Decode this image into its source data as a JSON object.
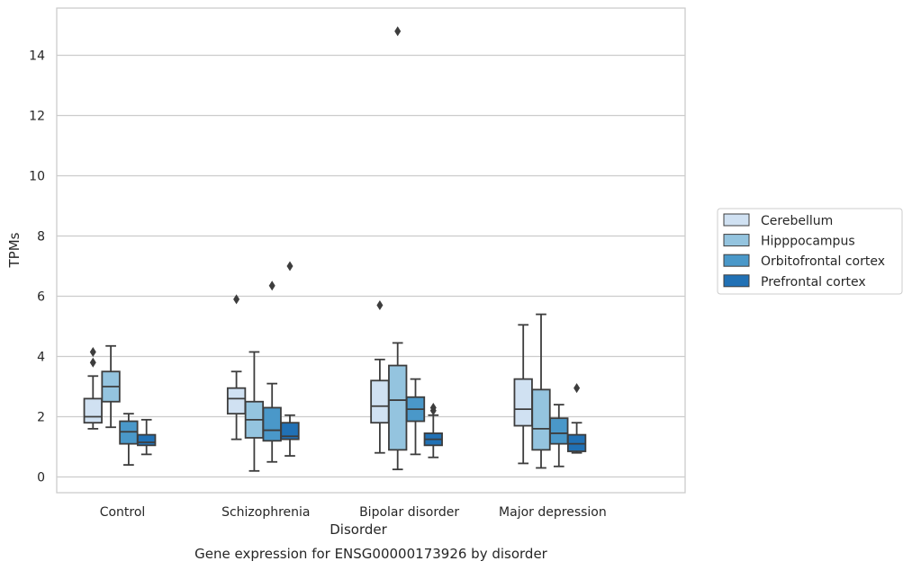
{
  "chart_data": {
    "type": "box",
    "title": "",
    "caption": "Gene expression for ENSG00000173926 by disorder",
    "xlabel": "Disorder",
    "ylabel": "TPMs",
    "ylim": [
      -0.5,
      15.6
    ],
    "yticks": [
      0,
      2,
      4,
      6,
      8,
      10,
      12,
      14
    ],
    "ytick_labels": [
      "0",
      "2",
      "4",
      "6",
      "8",
      "10",
      "12",
      "14"
    ],
    "grid": "horizontal",
    "legend_position": "right",
    "categories": [
      "Control",
      "Schizophrenia",
      "Bipolar disorder",
      "Major depression"
    ],
    "series": [
      {
        "name": "Cerebellum",
        "color": "#d0e1f2",
        "boxes": [
          {
            "whisker_low": 1.6,
            "q1": 1.8,
            "median": 2.0,
            "q3": 2.6,
            "whisker_high": 3.35,
            "outliers": [
              3.8,
              4.15
            ]
          },
          {
            "whisker_low": 1.25,
            "q1": 2.1,
            "median": 2.6,
            "q3": 2.95,
            "whisker_high": 3.5,
            "outliers": [
              5.9
            ]
          },
          {
            "whisker_low": 0.8,
            "q1": 1.8,
            "median": 2.35,
            "q3": 3.2,
            "whisker_high": 3.9,
            "outliers": [
              5.7
            ]
          },
          {
            "whisker_low": 0.45,
            "q1": 1.7,
            "median": 2.25,
            "q3": 3.25,
            "whisker_high": 5.05,
            "outliers": []
          }
        ]
      },
      {
        "name": "Hipppocampus",
        "color": "#94c4df",
        "boxes": [
          {
            "whisker_low": 1.65,
            "q1": 2.5,
            "median": 3.0,
            "q3": 3.5,
            "whisker_high": 4.35,
            "outliers": []
          },
          {
            "whisker_low": 0.2,
            "q1": 1.3,
            "median": 1.9,
            "q3": 2.5,
            "whisker_high": 4.15,
            "outliers": []
          },
          {
            "whisker_low": 0.25,
            "q1": 0.9,
            "median": 2.55,
            "q3": 3.7,
            "whisker_high": 4.45,
            "outliers": [
              14.8
            ]
          },
          {
            "whisker_low": 0.3,
            "q1": 0.9,
            "median": 1.6,
            "q3": 2.9,
            "whisker_high": 5.4,
            "outliers": []
          }
        ]
      },
      {
        "name": "Orbitofrontal cortex",
        "color": "#4a98c9",
        "boxes": [
          {
            "whisker_low": 0.4,
            "q1": 1.1,
            "median": 1.5,
            "q3": 1.85,
            "whisker_high": 2.1,
            "outliers": []
          },
          {
            "whisker_low": 0.5,
            "q1": 1.2,
            "median": 1.55,
            "q3": 2.3,
            "whisker_high": 3.1,
            "outliers": [
              6.35
            ]
          },
          {
            "whisker_low": 0.75,
            "q1": 1.85,
            "median": 2.25,
            "q3": 2.65,
            "whisker_high": 3.25,
            "outliers": []
          },
          {
            "whisker_low": 0.35,
            "q1": 1.1,
            "median": 1.45,
            "q3": 1.95,
            "whisker_high": 2.4,
            "outliers": []
          }
        ]
      },
      {
        "name": "Prefrontal cortex",
        "color": "#2171b5",
        "boxes": [
          {
            "whisker_low": 0.75,
            "q1": 1.05,
            "median": 1.15,
            "q3": 1.4,
            "whisker_high": 1.9,
            "outliers": []
          },
          {
            "whisker_low": 0.7,
            "q1": 1.25,
            "median": 1.35,
            "q3": 1.8,
            "whisker_high": 2.05,
            "outliers": [
              7.0
            ]
          },
          {
            "whisker_low": 0.65,
            "q1": 1.05,
            "median": 1.25,
            "q3": 1.45,
            "whisker_high": 2.05,
            "outliers": [
              2.2,
              2.3
            ]
          },
          {
            "whisker_low": 0.8,
            "q1": 0.85,
            "median": 1.1,
            "q3": 1.4,
            "whisker_high": 1.8,
            "outliers": [
              2.95
            ]
          }
        ]
      }
    ]
  }
}
